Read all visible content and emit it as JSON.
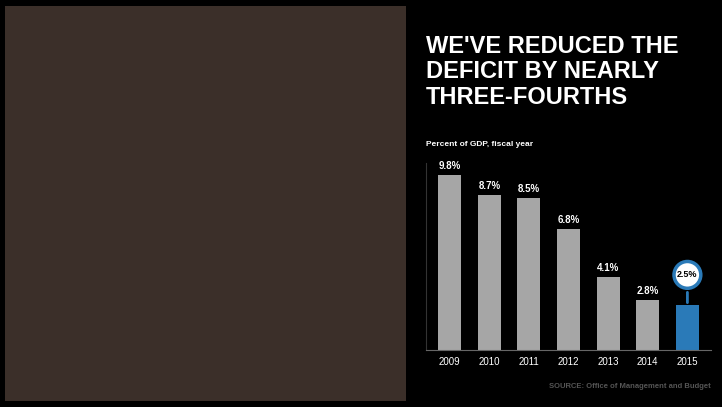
{
  "chart_data": {
    "type": "bar",
    "title": "WE'VE REDUCED THE DEFICIT BY NEARLY THREE-FOURTHS",
    "subtitle": "Percent of GDP, fiscal year",
    "categories": [
      "2009",
      "2010",
      "2011",
      "2012",
      "2013",
      "2014",
      "2015"
    ],
    "values": [
      9.8,
      8.7,
      8.5,
      6.8,
      4.1,
      2.8,
      2.5
    ],
    "value_labels": [
      "9.8%",
      "8.7%",
      "8.5%",
      "6.8%",
      "4.1%",
      "2.8%",
      "2.5%"
    ],
    "colors": [
      "#a6a6a6",
      "#a6a6a6",
      "#a6a6a6",
      "#a6a6a6",
      "#a6a6a6",
      "#a6a6a6",
      "#2a7ab8"
    ],
    "data_labels": true,
    "tick_labels": "x",
    "ylim": [
      0,
      10.5
    ],
    "source": "SOURCE: Office of Management and Budget"
  }
}
